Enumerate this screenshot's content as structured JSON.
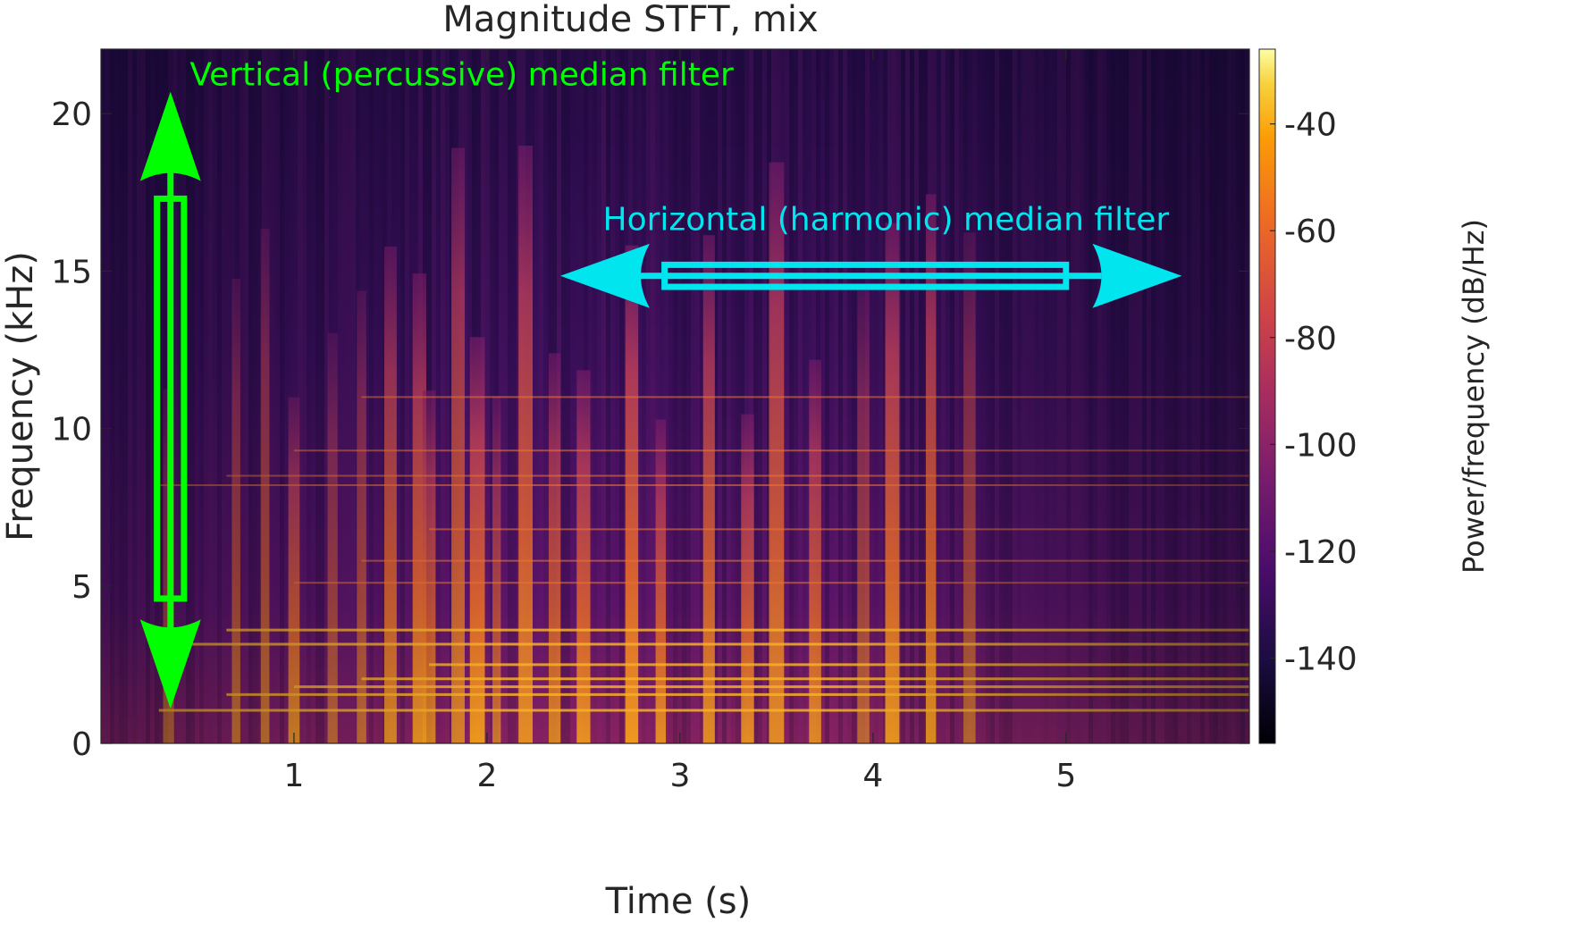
{
  "chart_data": {
    "type": "heatmap",
    "title": "Magnitude STFT, mix",
    "xlabel": "Time (s)",
    "ylabel": "Frequency (kHz)",
    "xlim": [
      0,
      5.95
    ],
    "ylim": [
      0,
      22.05
    ],
    "xticks": [
      1,
      2,
      3,
      4,
      5
    ],
    "xtick_labels": [
      "1",
      "2",
      "3",
      "4",
      "5"
    ],
    "yticks": [
      0,
      5,
      10,
      15,
      20
    ],
    "ytick_labels": [
      "0",
      "5",
      "10",
      "15",
      "20"
    ],
    "colorbar": {
      "label": "Power/frequency (dB/Hz)",
      "range": [
        -156,
        -26
      ],
      "ticks": [
        -40,
        -60,
        -80,
        -100,
        -120,
        -140
      ],
      "tick_labels": [
        "-40",
        "-60",
        "-80",
        "-100",
        "-120",
        "-140"
      ],
      "colormap": "inferno",
      "placement": "right"
    },
    "series": [
      {
        "name": "percussive onsets (vertical energy streaks, s)",
        "onset_times": [
          0.35,
          0.7,
          0.85,
          1.0,
          1.2,
          1.35,
          1.5,
          1.65,
          1.7,
          1.85,
          1.95,
          2.05,
          2.2,
          2.35,
          2.5,
          2.75,
          2.9,
          3.15,
          3.35,
          3.5,
          3.7,
          3.95,
          4.1,
          4.3,
          4.5
        ]
      },
      {
        "name": "harmonic partials (horizontal lines, kHz)",
        "partial_freqs_khz": [
          1.05,
          1.55,
          1.8,
          2.05,
          2.5,
          3.15,
          3.6,
          5.1,
          5.8,
          6.8,
          8.2,
          8.5,
          9.3,
          11.0
        ]
      }
    ],
    "annotations": [
      {
        "id": "vertical",
        "text": "Vertical (percussive) median filter",
        "color": "#00ff00",
        "orientation": "vertical",
        "arrow_x": 0.36,
        "arrow_y_range": [
          1.1,
          20.7
        ],
        "box_x_range": [
          0.29,
          0.43
        ],
        "box_y_range": [
          4.6,
          17.3
        ],
        "label_x": 0.46,
        "label_y": 20.9
      },
      {
        "id": "horizontal",
        "text": "Horizontal (harmonic) median filter",
        "color": "#00e5ee",
        "orientation": "horizontal",
        "arrow_y": 14.85,
        "arrow_x_range": [
          2.38,
          5.6
        ],
        "box_x_range": [
          2.92,
          5.0
        ],
        "box_y_range": [
          14.5,
          15.2
        ],
        "label_x": 2.6,
        "label_y": 16.3
      }
    ]
  }
}
